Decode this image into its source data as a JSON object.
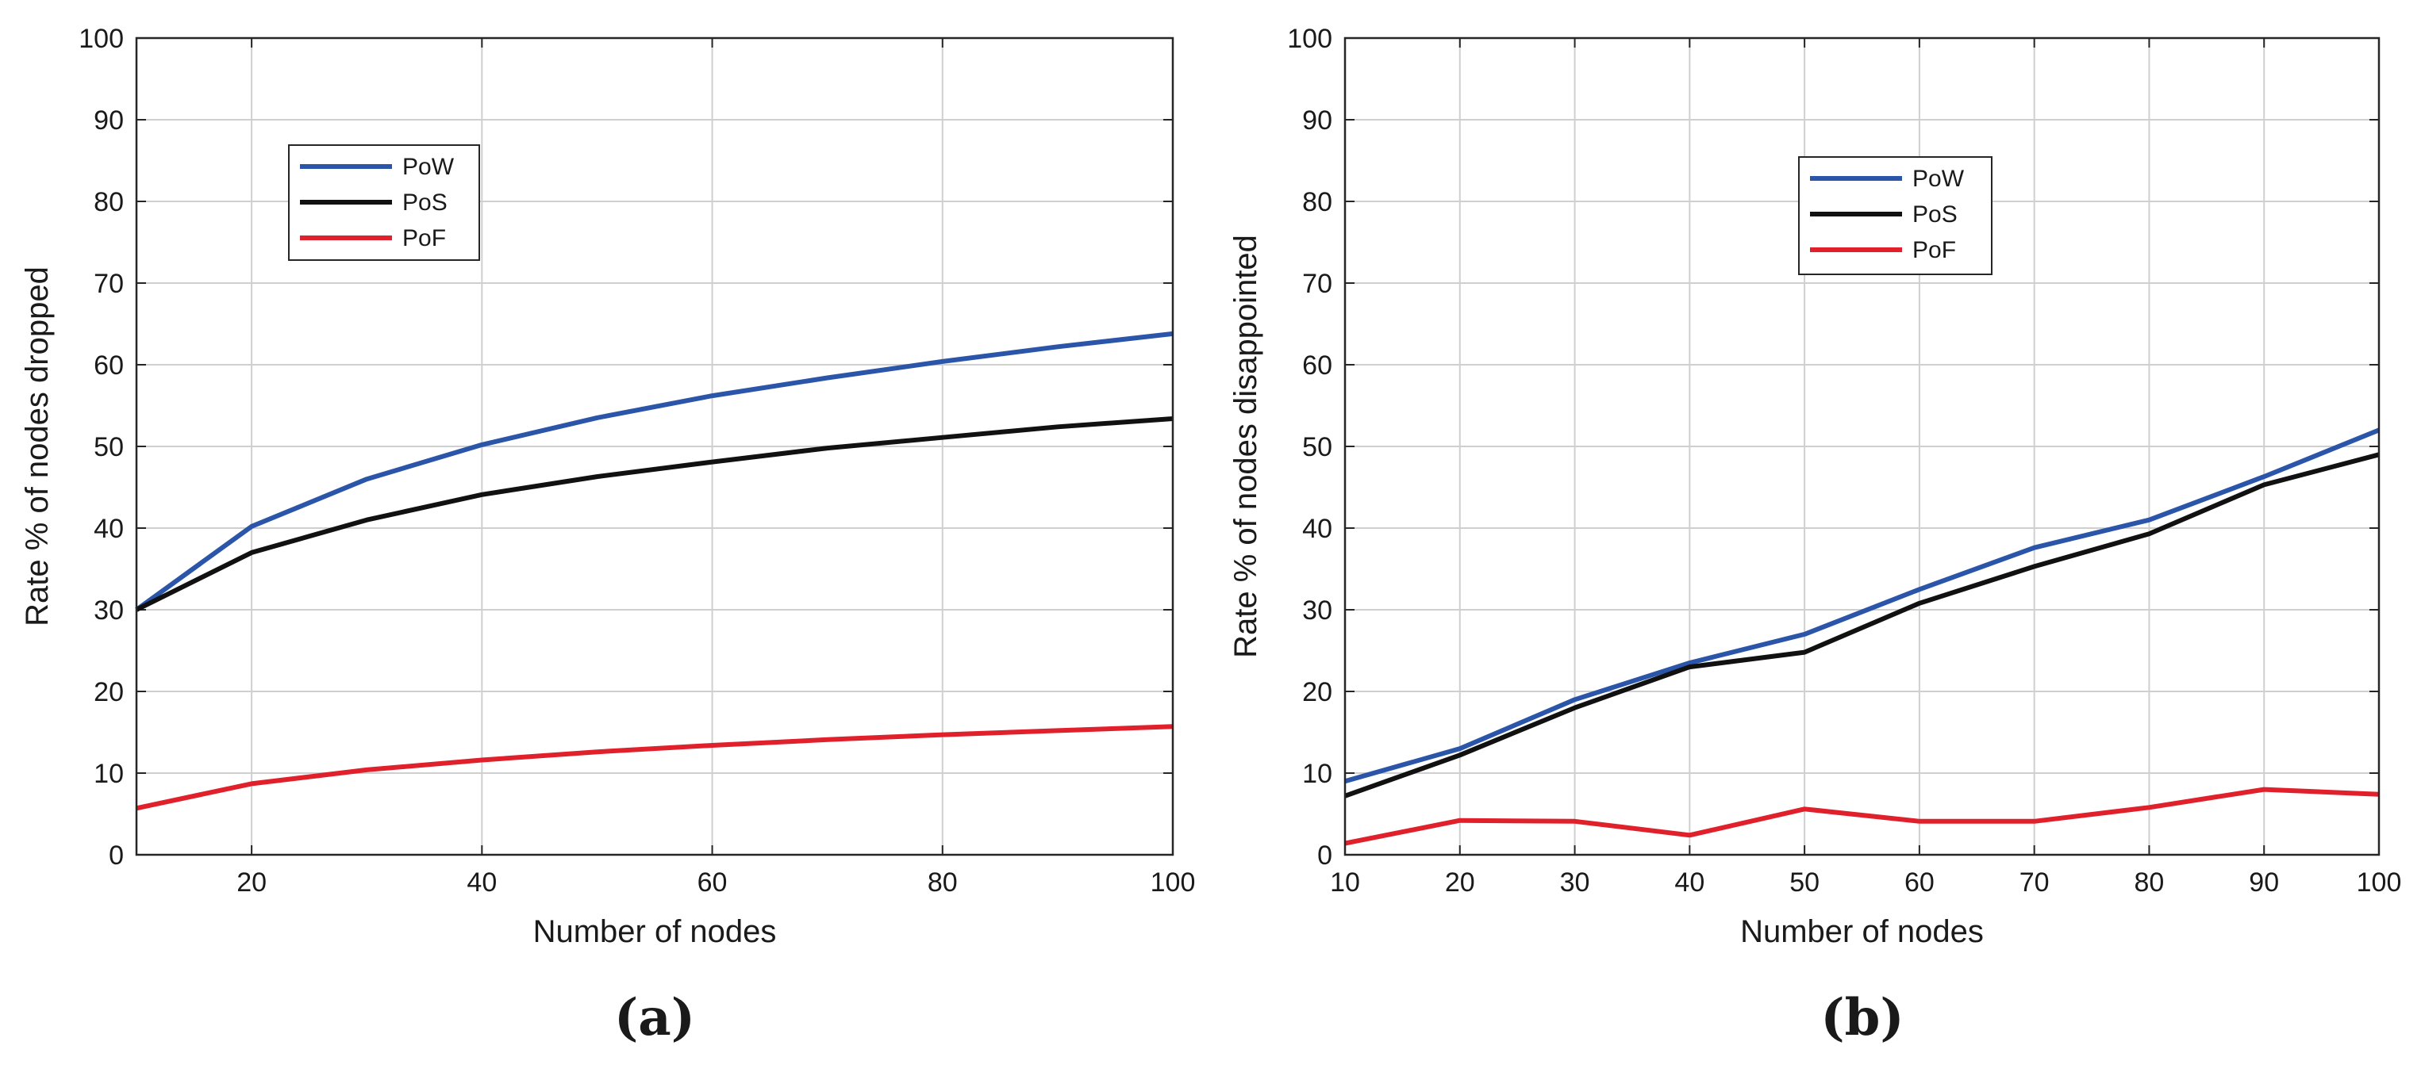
{
  "chart_data": [
    {
      "type": "line",
      "panel_label": "(a)",
      "xlabel": "Number of nodes",
      "ylabel": "Rate % of nodes dropped",
      "xlim": [
        10,
        100
      ],
      "ylim": [
        0,
        100
      ],
      "xticks": [
        20,
        40,
        60,
        80,
        100
      ],
      "yticks": [
        0,
        10,
        20,
        30,
        40,
        50,
        60,
        70,
        80,
        90,
        100
      ],
      "grid": true,
      "legend_position": "top-left",
      "x": [
        10,
        20,
        30,
        40,
        50,
        60,
        70,
        80,
        90,
        100
      ],
      "series": [
        {
          "name": "PoW",
          "color": "#2a55a8",
          "values": [
            30,
            40.2,
            46,
            50.2,
            53.5,
            56.2,
            58.4,
            60.4,
            62.2,
            63.8
          ]
        },
        {
          "name": "PoS",
          "color": "#111111",
          "values": [
            30,
            37,
            41,
            44.1,
            46.3,
            48.1,
            49.8,
            51.1,
            52.4,
            53.4
          ]
        },
        {
          "name": "PoF",
          "color": "#e0202a",
          "values": [
            5.7,
            8.7,
            10.4,
            11.6,
            12.6,
            13.4,
            14.1,
            14.7,
            15.2,
            15.7
          ]
        }
      ]
    },
    {
      "type": "line",
      "panel_label": "(b)",
      "xlabel": "Number of nodes",
      "ylabel": "Rate % of nodes disappointed",
      "xlim": [
        10,
        100
      ],
      "ylim": [
        0,
        100
      ],
      "xticks": [
        10,
        20,
        30,
        40,
        50,
        60,
        70,
        80,
        90,
        100
      ],
      "yticks": [
        0,
        10,
        20,
        30,
        40,
        50,
        60,
        70,
        80,
        90,
        100
      ],
      "grid": true,
      "legend_position": "top-center",
      "x": [
        10,
        20,
        30,
        40,
        50,
        60,
        70,
        80,
        90,
        100
      ],
      "series": [
        {
          "name": "PoW",
          "color": "#2a55a8",
          "values": [
            9,
            13,
            19,
            23.5,
            27,
            32.5,
            37.6,
            41,
            46.3,
            52
          ]
        },
        {
          "name": "PoS",
          "color": "#111111",
          "values": [
            7.2,
            12.2,
            18,
            23,
            24.8,
            30.8,
            35.3,
            39.3,
            45.3,
            49
          ]
        },
        {
          "name": "PoF",
          "color": "#e0202a",
          "values": [
            1.4,
            4.2,
            4.1,
            2.4,
            5.6,
            4.1,
            4.1,
            5.8,
            8,
            7.4
          ]
        }
      ]
    }
  ]
}
